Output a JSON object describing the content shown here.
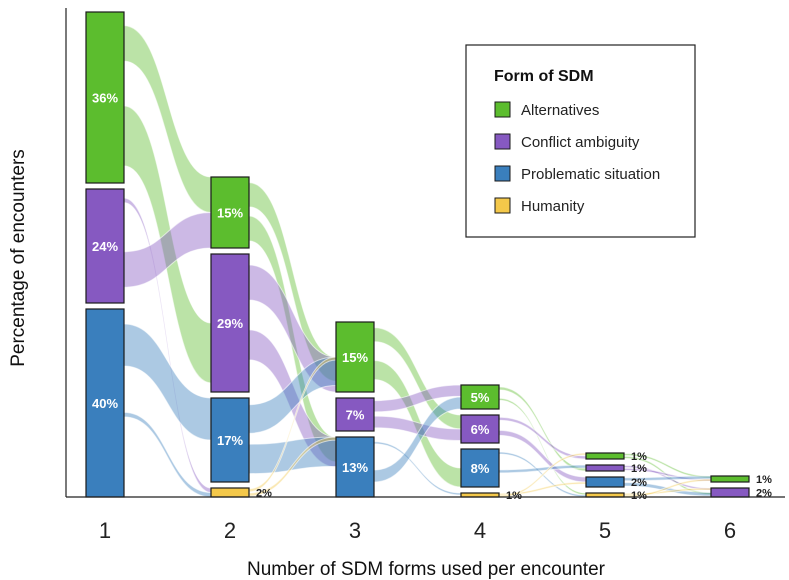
{
  "chart_data": {
    "type": "alluvial",
    "xlabel": "Number of SDM forms used per encounter",
    "ylabel": "Percentage of encounters",
    "categories": [
      "1",
      "2",
      "3",
      "4",
      "5",
      "6"
    ],
    "legend": {
      "title": "Form of SDM",
      "position": "top-right",
      "items": [
        {
          "name": "Alternatives",
          "color": "#5cbd2e"
        },
        {
          "name": "Conflict ambiguity",
          "color": "#8659c1"
        },
        {
          "name": "Problematic situation",
          "color": "#3a7fbd"
        },
        {
          "name": "Humanity",
          "color": "#f4c84a"
        }
      ]
    },
    "columns": [
      {
        "x": "1",
        "segments": [
          {
            "form": "Alternatives",
            "value": 36,
            "label": "36%"
          },
          {
            "form": "Conflict ambiguity",
            "value": 24,
            "label": "24%"
          },
          {
            "form": "Problematic situation",
            "value": 40,
            "label": "40%"
          }
        ]
      },
      {
        "x": "2",
        "segments": [
          {
            "form": "Alternatives",
            "value": 15,
            "label": "15%"
          },
          {
            "form": "Conflict ambiguity",
            "value": 29,
            "label": "29%"
          },
          {
            "form": "Problematic situation",
            "value": 17,
            "label": "17%"
          },
          {
            "form": "Humanity",
            "value": 2,
            "label": "2%"
          }
        ]
      },
      {
        "x": "3",
        "segments": [
          {
            "form": "Alternatives",
            "value": 15,
            "label": "15%"
          },
          {
            "form": "Conflict ambiguity",
            "value": 7,
            "label": "7%"
          },
          {
            "form": "Problematic situation",
            "value": 13,
            "label": "13%"
          }
        ]
      },
      {
        "x": "4",
        "segments": [
          {
            "form": "Alternatives",
            "value": 5,
            "label": "5%"
          },
          {
            "form": "Conflict ambiguity",
            "value": 6,
            "label": "6%"
          },
          {
            "form": "Problematic situation",
            "value": 8,
            "label": "8%"
          },
          {
            "form": "Humanity",
            "value": 1,
            "label": "1%"
          }
        ]
      },
      {
        "x": "5",
        "segments": [
          {
            "form": "Alternatives",
            "value": 1,
            "label": "1%"
          },
          {
            "form": "Conflict ambiguity",
            "value": 1,
            "label": "1%"
          },
          {
            "form": "Problematic situation",
            "value": 2,
            "label": "2%"
          },
          {
            "form": "Humanity",
            "value": 1,
            "label": "1%"
          }
        ]
      },
      {
        "x": "6",
        "segments": [
          {
            "form": "Alternatives",
            "value": 1,
            "label": "1%"
          },
          {
            "form": "Conflict ambiguity",
            "value": 2,
            "label": "2%"
          }
        ]
      }
    ]
  }
}
